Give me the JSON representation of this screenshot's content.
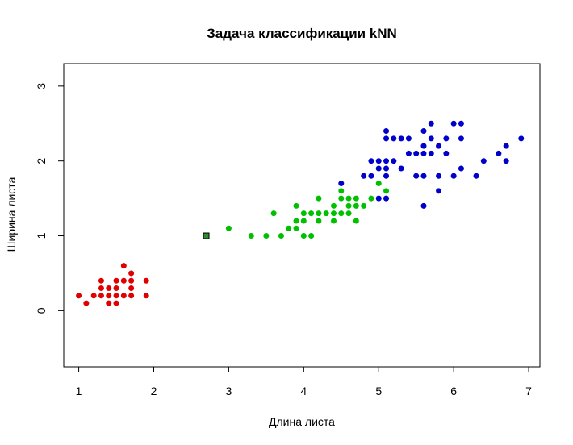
{
  "chart_data": {
    "type": "scatter",
    "title": "Задача классификации kNN",
    "xlabel": "Длина листа",
    "ylabel": "Ширина листа",
    "xlim": [
      0.8,
      7.15
    ],
    "ylim": [
      -0.75,
      3.3
    ],
    "xticks": [
      1,
      2,
      3,
      4,
      5,
      6,
      7
    ],
    "yticks": [
      0,
      1,
      2,
      3
    ],
    "grid": false,
    "legend": "none",
    "series": [
      {
        "color": "#e00000",
        "marker": "circle",
        "points": [
          [
            1.0,
            0.2
          ],
          [
            1.1,
            0.1
          ],
          [
            1.2,
            0.2
          ],
          [
            1.3,
            0.2
          ],
          [
            1.3,
            0.3
          ],
          [
            1.3,
            0.4
          ],
          [
            1.4,
            0.1
          ],
          [
            1.4,
            0.2
          ],
          [
            1.4,
            0.3
          ],
          [
            1.5,
            0.1
          ],
          [
            1.5,
            0.2
          ],
          [
            1.5,
            0.3
          ],
          [
            1.5,
            0.4
          ],
          [
            1.6,
            0.2
          ],
          [
            1.6,
            0.4
          ],
          [
            1.6,
            0.6
          ],
          [
            1.7,
            0.2
          ],
          [
            1.7,
            0.3
          ],
          [
            1.7,
            0.4
          ],
          [
            1.7,
            0.5
          ],
          [
            1.9,
            0.2
          ],
          [
            1.9,
            0.4
          ]
        ]
      },
      {
        "color": "#00c000",
        "marker": "circle",
        "points": [
          [
            3.0,
            1.1
          ],
          [
            3.3,
            1.0
          ],
          [
            3.5,
            1.0
          ],
          [
            3.6,
            1.3
          ],
          [
            3.7,
            1.0
          ],
          [
            3.8,
            1.1
          ],
          [
            3.9,
            1.1
          ],
          [
            3.9,
            1.2
          ],
          [
            3.9,
            1.4
          ],
          [
            4.0,
            1.0
          ],
          [
            4.0,
            1.2
          ],
          [
            4.0,
            1.3
          ],
          [
            4.1,
            1.0
          ],
          [
            4.1,
            1.3
          ],
          [
            4.2,
            1.2
          ],
          [
            4.2,
            1.3
          ],
          [
            4.2,
            1.5
          ],
          [
            4.3,
            1.3
          ],
          [
            4.4,
            1.2
          ],
          [
            4.4,
            1.3
          ],
          [
            4.4,
            1.4
          ],
          [
            4.5,
            1.3
          ],
          [
            4.5,
            1.5
          ],
          [
            4.5,
            1.6
          ],
          [
            4.6,
            1.3
          ],
          [
            4.6,
            1.4
          ],
          [
            4.6,
            1.5
          ],
          [
            4.7,
            1.2
          ],
          [
            4.7,
            1.4
          ],
          [
            4.7,
            1.5
          ],
          [
            4.8,
            1.4
          ],
          [
            4.9,
            1.5
          ],
          [
            5.0,
            1.7
          ],
          [
            5.1,
            1.6
          ]
        ]
      },
      {
        "color": "#0000cc",
        "marker": "circle",
        "points": [
          [
            4.5,
            1.7
          ],
          [
            4.8,
            1.8
          ],
          [
            4.9,
            1.8
          ],
          [
            4.9,
            2.0
          ],
          [
            5.0,
            1.5
          ],
          [
            5.0,
            1.9
          ],
          [
            5.0,
            2.0
          ],
          [
            5.1,
            1.5
          ],
          [
            5.1,
            1.8
          ],
          [
            5.1,
            1.9
          ],
          [
            5.1,
            2.0
          ],
          [
            5.1,
            2.3
          ],
          [
            5.1,
            2.4
          ],
          [
            5.2,
            2.0
          ],
          [
            5.2,
            2.3
          ],
          [
            5.3,
            1.9
          ],
          [
            5.3,
            2.3
          ],
          [
            5.4,
            2.1
          ],
          [
            5.4,
            2.3
          ],
          [
            5.5,
            1.8
          ],
          [
            5.5,
            2.1
          ],
          [
            5.6,
            1.4
          ],
          [
            5.6,
            1.8
          ],
          [
            5.6,
            2.1
          ],
          [
            5.6,
            2.2
          ],
          [
            5.6,
            2.4
          ],
          [
            5.7,
            2.1
          ],
          [
            5.7,
            2.3
          ],
          [
            5.7,
            2.5
          ],
          [
            5.8,
            1.6
          ],
          [
            5.8,
            1.8
          ],
          [
            5.8,
            2.2
          ],
          [
            5.9,
            2.1
          ],
          [
            5.9,
            2.3
          ],
          [
            6.0,
            1.8
          ],
          [
            6.0,
            2.5
          ],
          [
            6.1,
            1.9
          ],
          [
            6.1,
            2.3
          ],
          [
            6.1,
            2.5
          ],
          [
            6.3,
            1.8
          ],
          [
            6.4,
            2.0
          ],
          [
            6.6,
            2.1
          ],
          [
            6.7,
            2.0
          ],
          [
            6.7,
            2.2
          ],
          [
            6.9,
            2.3
          ]
        ]
      },
      {
        "color": "#2e8b2e",
        "marker": "square",
        "points": [
          [
            2.7,
            1.0
          ]
        ]
      }
    ]
  }
}
